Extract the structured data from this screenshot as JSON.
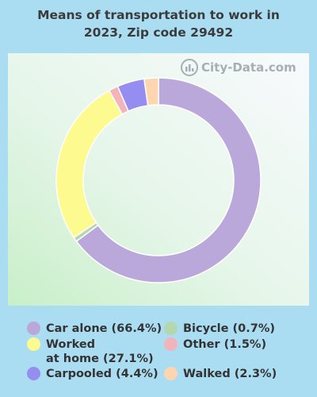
{
  "title_line1": "Means of transportation to work in",
  "title_line2": "2023, Zip code 29492",
  "watermark": "City-Data.com",
  "chart_data": {
    "type": "pie",
    "donut": true,
    "title": "Means of transportation to work in 2023, Zip code 29492",
    "slices": [
      {
        "label": "Car alone",
        "value": 66.4,
        "color": "#bba8da"
      },
      {
        "label": "Bicycle",
        "value": 0.7,
        "color": "#b5d7ae"
      },
      {
        "label": "Worked at home",
        "value": 27.1,
        "color": "#fdfa8f"
      },
      {
        "label": "Other",
        "value": 1.5,
        "color": "#f2b4ba"
      },
      {
        "label": "Carpooled",
        "value": 4.4,
        "color": "#958ef0"
      },
      {
        "label": "Walked",
        "value": 2.3,
        "color": "#fdd6b0"
      }
    ],
    "legend_placement": "bottom"
  },
  "legend": [
    {
      "text": "Car alone (66.4%)",
      "color": "#bba8da"
    },
    {
      "text": "Worked\nat home (27.1%)",
      "color": "#fdfa8f"
    },
    {
      "text": "Carpooled (4.4%)",
      "color": "#958ef0"
    },
    {
      "text": "Bicycle (0.7%)",
      "color": "#b5d7ae"
    },
    {
      "text": "Other (1.5%)",
      "color": "#f2b4ba"
    },
    {
      "text": "Walked (2.3%)",
      "color": "#fdd6b0"
    }
  ]
}
